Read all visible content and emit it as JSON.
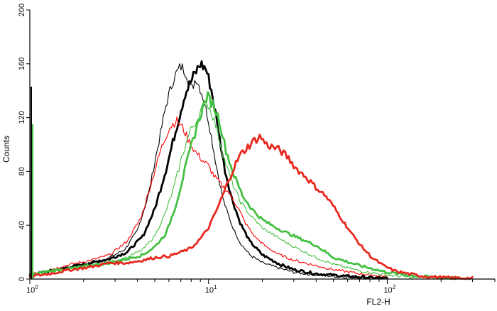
{
  "chart_data": {
    "type": "line",
    "title": "",
    "xlabel": "FL2-H",
    "ylabel": "Counts",
    "xscale": "log",
    "xlim": [
      1,
      400
    ],
    "ylim": [
      0,
      200
    ],
    "yticks": [
      0,
      40,
      80,
      120,
      160,
      200
    ],
    "yticklabels": [
      "0",
      "40",
      "80",
      "120",
      "160",
      "200"
    ],
    "xticks": [
      1,
      10,
      100
    ],
    "xticklabels": [
      {
        "base": "10",
        "exp": "0"
      },
      {
        "base": "10",
        "exp": "1"
      },
      {
        "base": "10",
        "exp": "2"
      }
    ],
    "grid": false,
    "legend": "none",
    "series": [
      {
        "color": "#000000",
        "weight": "thin",
        "points": [
          [
            1.0,
            3
          ],
          [
            1.3,
            6
          ],
          [
            1.7,
            9
          ],
          [
            2.2,
            12
          ],
          [
            2.8,
            16
          ],
          [
            3.4,
            22
          ],
          [
            4.0,
            36
          ],
          [
            4.6,
            62
          ],
          [
            5.2,
            98
          ],
          [
            5.8,
            130
          ],
          [
            6.4,
            150
          ],
          [
            7.0,
            158
          ],
          [
            7.5,
            154
          ],
          [
            8.0,
            140
          ],
          [
            8.5,
            150
          ],
          [
            9.2,
            138
          ],
          [
            10.0,
            118
          ],
          [
            11.0,
            86
          ],
          [
            12.0,
            60
          ],
          [
            13.5,
            40
          ],
          [
            15.0,
            27
          ],
          [
            17.0,
            18
          ],
          [
            20.0,
            12
          ],
          [
            25.0,
            8
          ],
          [
            30.0,
            5
          ],
          [
            40.0,
            3
          ],
          [
            60.0,
            1.5
          ],
          [
            100.0,
            0.5
          ]
        ]
      },
      {
        "color": "#000000",
        "weight": "thick",
        "points": [
          [
            1.0,
            3
          ],
          [
            1.3,
            6
          ],
          [
            1.7,
            9
          ],
          [
            2.2,
            12
          ],
          [
            2.8,
            15
          ],
          [
            3.5,
            20
          ],
          [
            4.3,
            32
          ],
          [
            5.0,
            52
          ],
          [
            5.8,
            82
          ],
          [
            6.6,
            112
          ],
          [
            7.4,
            138
          ],
          [
            8.2,
            150
          ],
          [
            9.0,
            160
          ],
          [
            9.7,
            156
          ],
          [
            10.4,
            140
          ],
          [
            11.3,
            112
          ],
          [
            12.3,
            82
          ],
          [
            13.5,
            60
          ],
          [
            15.0,
            42
          ],
          [
            17.0,
            28
          ],
          [
            20.0,
            18
          ],
          [
            25.0,
            11
          ],
          [
            30.0,
            7
          ],
          [
            40.0,
            4
          ],
          [
            60.0,
            2
          ],
          [
            100.0,
            0.5
          ]
        ]
      },
      {
        "color": "#ff0000",
        "weight": "thin",
        "points": [
          [
            1.0,
            3
          ],
          [
            1.3,
            7
          ],
          [
            1.7,
            11
          ],
          [
            2.2,
            14
          ],
          [
            2.8,
            18
          ],
          [
            3.5,
            28
          ],
          [
            4.2,
            46
          ],
          [
            4.8,
            72
          ],
          [
            5.4,
            96
          ],
          [
            6.0,
            112
          ],
          [
            6.6,
            118
          ],
          [
            7.2,
            112
          ],
          [
            7.8,
            102
          ],
          [
            8.5,
            94
          ],
          [
            9.3,
            88
          ],
          [
            10.0,
            84
          ],
          [
            10.8,
            76
          ],
          [
            11.8,
            70
          ],
          [
            13.0,
            64
          ],
          [
            14.5,
            54
          ],
          [
            16.0,
            42
          ],
          [
            18.0,
            32
          ],
          [
            21.0,
            24
          ],
          [
            25.0,
            18
          ],
          [
            30.0,
            14
          ],
          [
            40.0,
            10
          ],
          [
            50.0,
            7
          ],
          [
            70.0,
            4
          ],
          [
            100.0,
            2
          ]
        ]
      },
      {
        "color": "#44c042",
        "weight": "thin",
        "points": [
          [
            1.0,
            3
          ],
          [
            1.3,
            6
          ],
          [
            1.7,
            8
          ],
          [
            2.2,
            10
          ],
          [
            2.8,
            13
          ],
          [
            3.5,
            16
          ],
          [
            4.3,
            22
          ],
          [
            5.0,
            32
          ],
          [
            5.7,
            48
          ],
          [
            6.4,
            68
          ],
          [
            7.2,
            94
          ],
          [
            8.0,
            112
          ],
          [
            8.8,
            120
          ],
          [
            9.6,
            132
          ],
          [
            10.3,
            126
          ],
          [
            11.2,
            110
          ],
          [
            12.2,
            90
          ],
          [
            13.5,
            72
          ],
          [
            15.0,
            58
          ],
          [
            17.0,
            48
          ],
          [
            20.0,
            38
          ],
          [
            25.0,
            30
          ],
          [
            30.0,
            24
          ],
          [
            40.0,
            16
          ],
          [
            50.0,
            11
          ],
          [
            70.0,
            6
          ],
          [
            100.0,
            3
          ],
          [
            140.0,
            1
          ]
        ]
      },
      {
        "color": "#44c042",
        "weight": "thick",
        "points": [
          [
            1.0,
            3
          ],
          [
            1.3,
            6
          ],
          [
            1.7,
            8
          ],
          [
            2.2,
            10
          ],
          [
            2.8,
            12
          ],
          [
            3.5,
            15
          ],
          [
            4.3,
            18
          ],
          [
            5.0,
            24
          ],
          [
            5.8,
            34
          ],
          [
            6.6,
            56
          ],
          [
            7.4,
            82
          ],
          [
            8.2,
            104
          ],
          [
            9.0,
            122
          ],
          [
            9.8,
            136
          ],
          [
            10.6,
            130
          ],
          [
            11.5,
            118
          ],
          [
            12.5,
            96
          ],
          [
            13.8,
            78
          ],
          [
            15.5,
            62
          ],
          [
            17.5,
            52
          ],
          [
            20.0,
            44
          ],
          [
            24.0,
            38
          ],
          [
            30.0,
            32
          ],
          [
            40.0,
            25
          ],
          [
            50.0,
            16
          ],
          [
            70.0,
            10
          ],
          [
            100.0,
            5
          ],
          [
            150.0,
            2
          ],
          [
            250.0,
            0.5
          ]
        ]
      },
      {
        "color": "#e8281e",
        "weight": "thick",
        "points": [
          [
            1.0,
            2
          ],
          [
            1.3,
            4
          ],
          [
            1.7,
            7
          ],
          [
            2.2,
            9
          ],
          [
            2.8,
            12
          ],
          [
            3.5,
            12
          ],
          [
            4.3,
            14
          ],
          [
            5.0,
            16
          ],
          [
            6.0,
            17
          ],
          [
            7.0,
            20
          ],
          [
            8.0,
            23
          ],
          [
            9.0,
            30
          ],
          [
            10.0,
            38
          ],
          [
            11.0,
            50
          ],
          [
            12.0,
            62
          ],
          [
            13.0,
            74
          ],
          [
            14.0,
            84
          ],
          [
            15.0,
            92
          ],
          [
            16.5,
            98
          ],
          [
            18.0,
            103
          ],
          [
            19.5,
            106
          ],
          [
            21.0,
            100
          ],
          [
            23.0,
            98
          ],
          [
            25.0,
            96
          ],
          [
            28.0,
            90
          ],
          [
            31.0,
            82
          ],
          [
            35.0,
            76
          ],
          [
            40.0,
            68
          ],
          [
            45.0,
            62
          ],
          [
            50.0,
            54
          ],
          [
            56.0,
            44
          ],
          [
            63.0,
            34
          ],
          [
            72.0,
            24
          ],
          [
            82.0,
            16
          ],
          [
            95.0,
            10
          ],
          [
            110.0,
            6
          ],
          [
            130.0,
            4
          ],
          [
            160.0,
            2
          ],
          [
            220.0,
            1
          ],
          [
            300.0,
            0.5
          ]
        ]
      }
    ]
  }
}
